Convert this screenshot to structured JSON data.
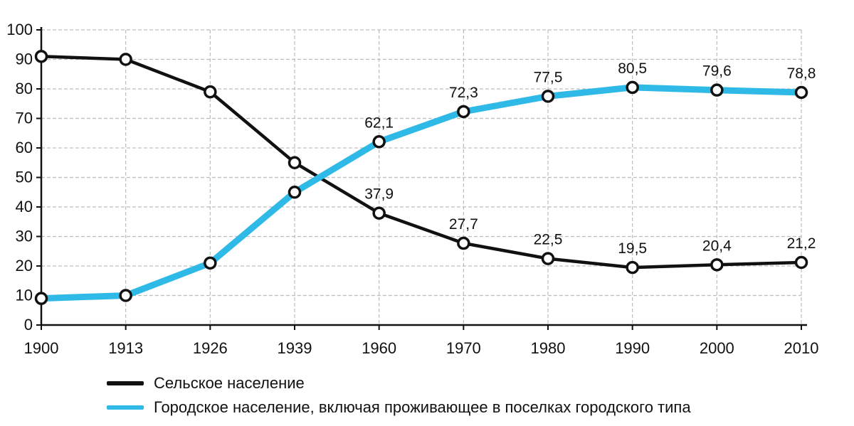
{
  "chart_data": {
    "type": "line",
    "title": "",
    "xlabel": "",
    "ylabel": "",
    "categories": [
      "1900",
      "1913",
      "1926",
      "1939",
      "1960",
      "1970",
      "1980",
      "1990",
      "2000",
      "2010"
    ],
    "ylim": [
      0,
      100
    ],
    "yticks": [
      0,
      10,
      20,
      30,
      40,
      50,
      60,
      70,
      80,
      90,
      100
    ],
    "grid": true,
    "legend_position": "bottom-left",
    "series": [
      {
        "name": "Сельское население",
        "color": "#111111",
        "values": [
          91,
          90,
          79,
          55,
          37.9,
          27.7,
          22.5,
          19.5,
          20.4,
          21.2
        ],
        "point_labels": [
          "",
          "",
          "",
          "",
          "37,9",
          "27,7",
          "22,5",
          "19,5",
          "20,4",
          "21,2"
        ]
      },
      {
        "name": "Городское население, включая проживающее в поселках городского типа",
        "color": "#2fb9e6",
        "values": [
          9,
          10,
          21,
          45,
          62.1,
          72.3,
          77.5,
          80.5,
          79.6,
          78.8
        ],
        "point_labels": [
          "",
          "",
          "",
          "",
          "62,1",
          "72,3",
          "77,5",
          "80,5",
          "79,6",
          "78,8"
        ]
      }
    ]
  }
}
